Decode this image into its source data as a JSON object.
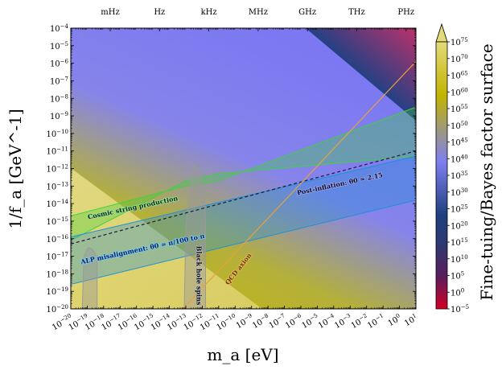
{
  "chart_data": {
    "type": "area",
    "xlabel": "m_a [eV]",
    "ylabel": "1/f_a [GeV^-1]",
    "colorbar_label": "Fine-tuing/Bayes factor surface",
    "x_scale": "log",
    "y_scale": "log",
    "xlim_exp": [
      -20,
      1
    ],
    "ylim_exp": [
      -20,
      -4
    ],
    "x_ticks_exp": [
      -20,
      -19,
      -18,
      -17,
      -16,
      -15,
      -14,
      -13,
      -12,
      -11,
      -10,
      -9,
      -8,
      -7,
      -6,
      -5,
      -4,
      -3,
      -2,
      -1,
      0,
      1
    ],
    "y_ticks_exp": [
      -20,
      -19,
      -18,
      -17,
      -16,
      -15,
      -14,
      -13,
      -12,
      -11,
      -10,
      -9,
      -8,
      -7,
      -6,
      -5,
      -4
    ],
    "top_axis": {
      "labels": [
        "mHz",
        "Hz",
        "kHz",
        "MHz",
        "GHz",
        "THz",
        "PHz"
      ],
      "mass_exp": [
        -17.6,
        -14.6,
        -11.6,
        -8.6,
        -5.6,
        -2.6,
        0.4
      ]
    },
    "colorbar": {
      "tick_exp": [
        75,
        70,
        65,
        60,
        55,
        50,
        45,
        40,
        35,
        30,
        25,
        20,
        15,
        10,
        5,
        0,
        -5
      ],
      "range_exp": [
        -5,
        75
      ],
      "extend": "max",
      "colors": [
        "#d40022",
        "#3d1e60",
        "#1f3f7c",
        "#7d7ff0",
        "#c2b400",
        "#e3da7a"
      ]
    },
    "regions": [
      {
        "name": "Cosmic string production",
        "color": "#3fd23f",
        "log_ma": [
          -20,
          -13,
          -11,
          1,
          1,
          -11,
          -13,
          -20
        ],
        "log_y": [
          -14.7,
          -13.0,
          -12.7,
          -8.5,
          -11.3,
          -12.3,
          -12.7,
          -16.1
        ]
      },
      {
        "name": "ALP misalignment: θ0 = π/100 to π",
        "color": "#1f8fd8",
        "log_ma": [
          -20,
          1,
          1,
          -20
        ],
        "log_y": [
          -15.9,
          -11.3,
          -13.8,
          -18.6
        ]
      },
      {
        "name": "Black hole spins",
        "color": "#9a9a9a",
        "log_ma": [
          -19.3,
          -19.2,
          -19.0,
          -18.9,
          -18.7,
          -18.4,
          -18.4,
          -19.3,
          -13.1,
          -13.0,
          -12.9,
          -12.7,
          -12.6,
          -12.5,
          -12.3,
          -12.0,
          -11.9,
          -11.8,
          -11.8,
          -13.1
        ],
        "log_y": [
          -20.0,
          -17.0,
          -16.6,
          -16.5,
          -16.6,
          -17.0,
          -20.0,
          -20.0,
          -20.0,
          -15.5,
          -14.3,
          -13.5,
          -12.3,
          -11.8,
          -11.9,
          -12.8,
          -13.3,
          -15.0,
          -20.0,
          -20.0
        ]
      }
    ],
    "lines": [
      {
        "name": "Post-inflation: θ0 ≃ 2.15",
        "style": "dashed",
        "color": "#1a1a3a",
        "log_ma": [
          -20,
          1
        ],
        "log_y": [
          -16.3,
          -11.0
        ]
      },
      {
        "name": "QCD axion",
        "style": "solid",
        "color": "#e8a040",
        "log_ma": [
          -13.2,
          1
        ],
        "log_y": [
          -20.0,
          -5.9
        ]
      }
    ]
  }
}
